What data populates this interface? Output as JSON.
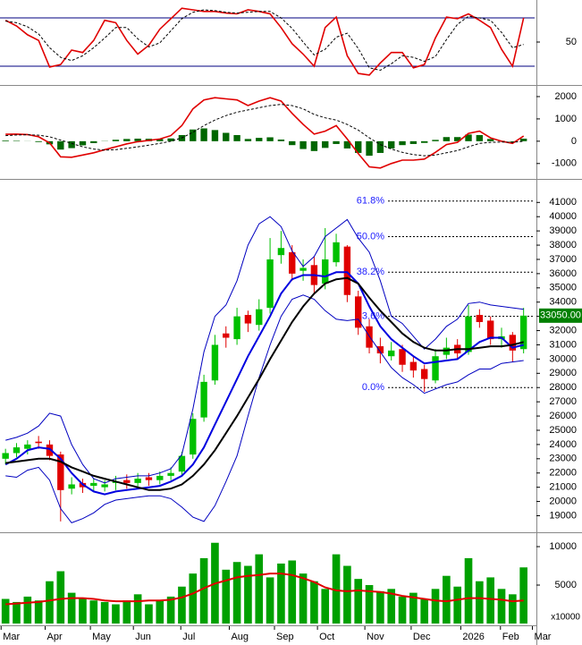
{
  "chart_data": [
    {
      "type": "line",
      "ylim": [
        0,
        100
      ],
      "yticks": [
        50
      ],
      "levels": [
        20,
        80
      ],
      "level_color": "#000080",
      "series": [
        {
          "color": "#e00000",
          "values": [
            77,
            70,
            59,
            52,
            19,
            22,
            40,
            37,
            52,
            77,
            74,
            52,
            35,
            46,
            66,
            79,
            92,
            90,
            88,
            88,
            86,
            85,
            90,
            88,
            85,
            68,
            48,
            35,
            20,
            68,
            81,
            33,
            11,
            9,
            24,
            37,
            37,
            18,
            22,
            55,
            81,
            79,
            85,
            77,
            68,
            41,
            20,
            80
          ]
        },
        {
          "color": "#000000",
          "style": "dashed",
          "values": [
            76,
            74,
            69,
            60,
            43,
            31,
            27,
            33,
            43,
            55,
            68,
            68,
            54,
            44,
            49,
            64,
            79,
            87,
            90,
            89,
            87,
            86,
            87,
            88,
            88,
            80,
            67,
            50,
            34,
            41,
            56,
            61,
            42,
            18,
            15,
            23,
            33,
            31,
            26,
            32,
            53,
            72,
            82,
            80,
            77,
            62,
            43,
            47
          ]
        }
      ]
    },
    {
      "type": "line",
      "ylim": [
        -1650,
        2400
      ],
      "yticks": [
        2000,
        1000,
        0,
        -1000
      ],
      "series": [
        {
          "color": "#006600",
          "style": "histogram",
          "values": [
            30,
            20,
            5,
            -35,
            -140,
            -375,
            -310,
            -185,
            -85,
            10,
            65,
            100,
            115,
            110,
            100,
            125,
            275,
            525,
            575,
            500,
            375,
            275,
            100,
            150,
            175,
            75,
            -175,
            -350,
            -440,
            -300,
            -125,
            -325,
            -525,
            -650,
            -525,
            -325,
            -175,
            -125,
            -75,
            60,
            185,
            185,
            300,
            275,
            100,
            20,
            -25,
            115
          ]
        },
        {
          "color": "#e00000",
          "values": [
            310,
            320,
            300,
            200,
            -80,
            -700,
            -720,
            -620,
            -520,
            -380,
            -250,
            -120,
            -20,
            40,
            100,
            250,
            700,
            1450,
            1850,
            1950,
            1900,
            1850,
            1600,
            1800,
            1950,
            1800,
            1250,
            750,
            320,
            450,
            700,
            100,
            -550,
            -1150,
            -1200,
            -1000,
            -850,
            -850,
            -800,
            -500,
            -150,
            -50,
            350,
            450,
            150,
            0,
            -100,
            230
          ]
        },
        {
          "color": "#000000",
          "style": "dashed",
          "values": [
            250,
            280,
            290,
            270,
            200,
            50,
            -100,
            -250,
            -350,
            -400,
            -380,
            -320,
            -250,
            -180,
            -100,
            0,
            150,
            400,
            700,
            950,
            1150,
            1300,
            1400,
            1500,
            1600,
            1650,
            1600,
            1450,
            1200,
            1050,
            950,
            750,
            500,
            150,
            -150,
            -350,
            -500,
            -600,
            -650,
            -620,
            -520,
            -420,
            -250,
            -100,
            -50,
            -40,
            -50,
            0
          ]
        }
      ]
    },
    {
      "type": "candlestick",
      "ylim": [
        17900,
        42400
      ],
      "yticks": [
        19000,
        20000,
        21000,
        22000,
        23000,
        24000,
        25000,
        26000,
        27000,
        28000,
        29000,
        30000,
        31000,
        32000,
        33000,
        34000,
        35000,
        36000,
        37000,
        38000,
        39000,
        40000,
        41000
      ],
      "up_color": "#00c000",
      "down_color": "#e00000",
      "open": [
        23000,
        23400,
        23700,
        24200,
        24000,
        23300,
        20900,
        21300,
        21100,
        21000,
        21300,
        21500,
        21300,
        21700,
        21500,
        21800,
        22100,
        23300,
        25900,
        28500,
        31800,
        31400,
        33100,
        32400,
        33600,
        37300,
        37500,
        36200,
        36600,
        35300,
        36800,
        37900,
        34400,
        32300,
        30900,
        30200,
        30700,
        29800,
        29300,
        28500,
        30300,
        31000,
        30500,
        33100,
        32700,
        31400,
        31700,
        30700
      ],
      "high": [
        23700,
        24100,
        24300,
        24600,
        24300,
        23500,
        21700,
        21600,
        21600,
        21500,
        21800,
        21900,
        22000,
        22000,
        22100,
        22400,
        23500,
        26200,
        28900,
        31700,
        32300,
        33600,
        33400,
        34200,
        38500,
        39000,
        38000,
        37000,
        37200,
        39200,
        38800,
        38000,
        34800,
        32800,
        31500,
        31200,
        31000,
        30200,
        29600,
        30700,
        31500,
        31400,
        33800,
        33500,
        33000,
        32200,
        31900,
        33600
      ],
      "low": [
        22600,
        23100,
        23300,
        23700,
        22900,
        18600,
        20500,
        20600,
        20700,
        20700,
        20800,
        20900,
        21000,
        21100,
        21200,
        21500,
        21800,
        23000,
        25600,
        28200,
        30800,
        31000,
        31900,
        32000,
        33200,
        36700,
        35500,
        35500,
        34600,
        34900,
        36500,
        34000,
        31700,
        30400,
        29700,
        29900,
        29100,
        28700,
        27700,
        28300,
        30000,
        30000,
        30300,
        32200,
        31000,
        30800,
        29800,
        30400
      ],
      "close": [
        23400,
        23800,
        24000,
        24100,
        23200,
        20800,
        21200,
        21000,
        21300,
        21200,
        21400,
        21300,
        21600,
        21500,
        21800,
        22000,
        23200,
        25800,
        28400,
        31000,
        31500,
        33000,
        32500,
        33500,
        37000,
        37800,
        36000,
        36400,
        35200,
        37000,
        38200,
        34500,
        32200,
        30800,
        30400,
        30600,
        29600,
        29200,
        28600,
        30200,
        30800,
        30400,
        33000,
        32600,
        31400,
        31600,
        30600,
        33050
      ],
      "series": [
        {
          "color": "#0000c0",
          "width": 1,
          "values": [
            24300,
            24500,
            24800,
            25300,
            26200,
            26000,
            24000,
            22600,
            21600,
            21300,
            21600,
            21700,
            21800,
            21800,
            22000,
            22300,
            23300,
            26500,
            30500,
            33000,
            33800,
            35500,
            38000,
            39500,
            40000,
            39300,
            37600,
            36500,
            37200,
            38600,
            39200,
            39800,
            38500,
            37500,
            35500,
            33000,
            32500,
            31600,
            30700,
            31400,
            32300,
            32800,
            33900,
            34000,
            33800,
            33700,
            33600,
            33500
          ]
        },
        {
          "color": "#0000c0",
          "width": 1,
          "values": [
            21800,
            21700,
            22200,
            22400,
            21500,
            19500,
            18500,
            18800,
            19200,
            19800,
            20100,
            20200,
            20300,
            20400,
            20400,
            20200,
            19600,
            18900,
            18600,
            19700,
            21400,
            23200,
            26000,
            28700,
            31000,
            33000,
            34200,
            34500,
            34200,
            33400,
            32800,
            32700,
            32800,
            31600,
            30500,
            29400,
            28700,
            28200,
            27600,
            27900,
            28200,
            28400,
            28900,
            29300,
            29300,
            29700,
            29800,
            29900
          ]
        },
        {
          "color": "#0000e0",
          "width": 2,
          "values": [
            22600,
            23000,
            23600,
            23800,
            23700,
            23000,
            22000,
            21200,
            20700,
            20500,
            20700,
            20800,
            20900,
            21000,
            21100,
            21400,
            21800,
            22600,
            23800,
            25400,
            27000,
            28600,
            30200,
            31600,
            33000,
            34600,
            35600,
            35900,
            35900,
            35800,
            36100,
            36100,
            35300,
            33700,
            32300,
            31400,
            30800,
            30200,
            29700,
            29800,
            29900,
            30000,
            30600,
            31200,
            31500,
            31500,
            30800,
            31000
          ]
        },
        {
          "color": "#000000",
          "width": 2,
          "values": [
            22700,
            22800,
            22900,
            23000,
            23000,
            22800,
            22400,
            22100,
            21800,
            21600,
            21400,
            21200,
            21000,
            20800,
            20800,
            20900,
            21200,
            21800,
            22600,
            23600,
            24800,
            26000,
            27300,
            28600,
            30000,
            31300,
            32600,
            33700,
            34600,
            35300,
            35600,
            35700,
            35300,
            34300,
            33400,
            32600,
            31800,
            31200,
            30800,
            30600,
            30600,
            30700,
            30700,
            30800,
            30900,
            30900,
            31000,
            31200
          ]
        }
      ],
      "fib_color": "#2020ff",
      "fib_levels": [
        {
          "label": "61.8%",
          "value": 41100
        },
        {
          "label": "50.0%",
          "value": 38600
        },
        {
          "label": "38.2%",
          "value": 36100
        },
        {
          "label": "23.6%",
          "value": 33000
        },
        {
          "label": "0.0%",
          "value": 28000
        }
      ],
      "last_value": {
        "value": 33050,
        "label": "33050.00"
      }
    },
    {
      "type": "bar",
      "ylim": [
        0,
        11400
      ],
      "yticks": [
        10000,
        5000
      ],
      "color": "#00a000",
      "unit_label": "x10000",
      "values": [
        3200,
        2800,
        3500,
        3000,
        5500,
        6800,
        4000,
        3200,
        3000,
        2800,
        2500,
        3000,
        3800,
        2500,
        3000,
        3500,
        4800,
        6500,
        8500,
        10500,
        7000,
        8000,
        7500,
        9000,
        6000,
        7800,
        8200,
        6500,
        5500,
        4500,
        9000,
        7500,
        5800,
        5000,
        4200,
        4500,
        3500,
        4000,
        3200,
        4500,
        6200,
        4800,
        8500,
        5500,
        6000,
        4500,
        3800,
        7300
      ],
      "series": [
        {
          "color": "#e00000",
          "width": 2,
          "values": [
            2500,
            2600,
            2700,
            2800,
            3000,
            3200,
            3300,
            3300,
            3200,
            3000,
            2900,
            2900,
            2900,
            3000,
            3000,
            3100,
            3400,
            3900,
            4600,
            5200,
            5600,
            6000,
            6200,
            6300,
            6500,
            6500,
            6300,
            5900,
            5400,
            4700,
            4300,
            4200,
            4300,
            4200,
            4100,
            3900,
            3600,
            3400,
            3200,
            3000,
            2900,
            3100,
            3300,
            3300,
            3200,
            3100,
            2900,
            3000
          ]
        }
      ],
      "xlim": [
        -0.5,
        48
      ],
      "xticks": [
        {
          "value": -0.4,
          "label": "Mar"
        },
        {
          "value": 3.6,
          "label": "Apr"
        },
        {
          "value": 7.7,
          "label": "May"
        },
        {
          "value": 11.6,
          "label": "Jun"
        },
        {
          "value": 15.9,
          "label": "Jul"
        },
        {
          "value": 20.3,
          "label": "Aug"
        },
        {
          "value": 24.4,
          "label": "Sep"
        },
        {
          "value": 28.3,
          "label": "Oct"
        },
        {
          "value": 32.6,
          "label": "Nov"
        },
        {
          "value": 36.8,
          "label": "Dec"
        },
        {
          "value": 41.3,
          "label": "2026"
        },
        {
          "value": 44.9,
          "label": "Feb"
        },
        {
          "value": 47.8,
          "label": "Mar"
        }
      ]
    }
  ]
}
